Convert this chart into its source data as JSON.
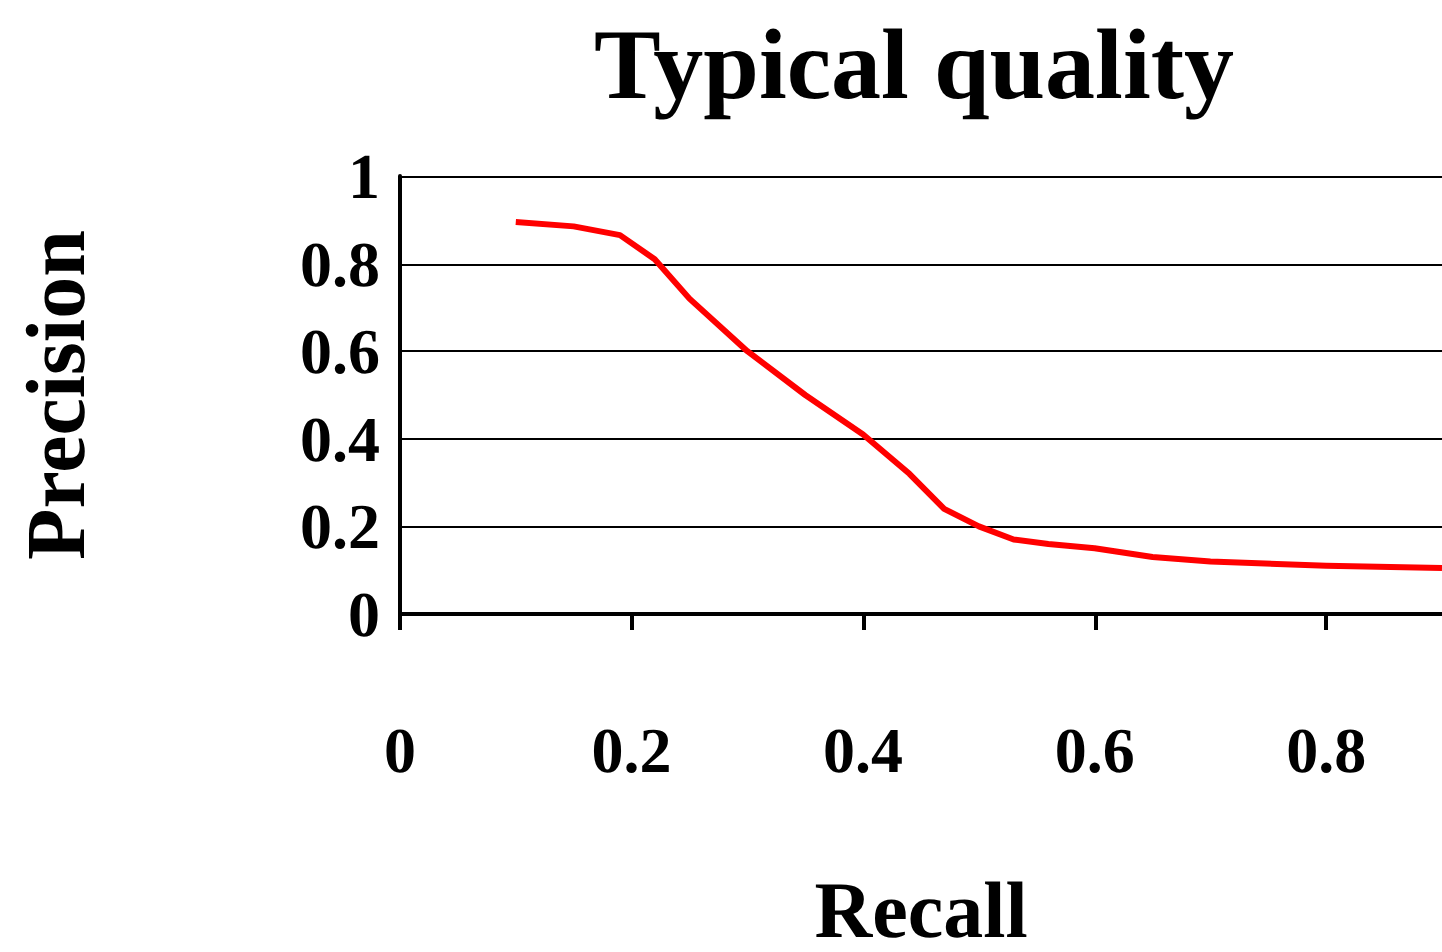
{
  "chart_data": {
    "type": "line",
    "title": "Typical quality",
    "xlabel": "Recall",
    "ylabel": "Precision",
    "x": [
      0.1,
      0.15,
      0.19,
      0.22,
      0.25,
      0.3,
      0.35,
      0.4,
      0.44,
      0.47,
      0.5,
      0.53,
      0.56,
      0.6,
      0.65,
      0.7,
      0.8,
      0.9
    ],
    "series": [
      {
        "color": "#ff0000",
        "values": [
          0.895,
          0.885,
          0.865,
          0.81,
          0.72,
          0.6,
          0.5,
          0.41,
          0.32,
          0.24,
          0.2,
          0.17,
          0.16,
          0.15,
          0.13,
          0.12,
          0.11,
          0.105
        ]
      }
    ],
    "xlim": [
      0,
      0.9
    ],
    "xticks": [
      0,
      0.2,
      0.4,
      0.6,
      0.8
    ],
    "ylim": [
      0,
      1
    ],
    "yticks": [
      0,
      0.2,
      0.4,
      0.6,
      0.8,
      1
    ],
    "grid": "y"
  }
}
